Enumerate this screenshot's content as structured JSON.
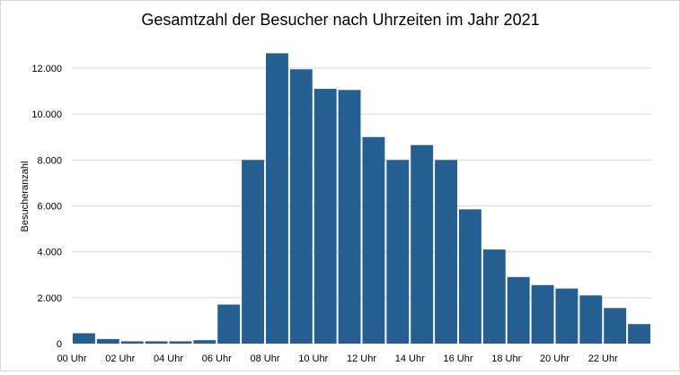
{
  "chart_data": {
    "type": "bar",
    "title": "Gesamtzahl der Besucher nach Uhrzeiten im Jahr 2021",
    "xlabel": "",
    "ylabel": "Besucheranzahl",
    "ylim": [
      0,
      12000
    ],
    "yticks": [
      0,
      2000,
      4000,
      6000,
      8000,
      10000,
      12000
    ],
    "ytick_labels": [
      "0",
      "2.000",
      "4.000",
      "6.000",
      "8.000",
      "10.000",
      "12.000"
    ],
    "categories": [
      "00 Uhr",
      "01 Uhr",
      "02 Uhr",
      "03 Uhr",
      "04 Uhr",
      "05 Uhr",
      "06 Uhr",
      "07 Uhr",
      "08 Uhr",
      "09 Uhr",
      "10 Uhr",
      "11 Uhr",
      "12 Uhr",
      "13 Uhr",
      "14 Uhr",
      "15 Uhr",
      "16 Uhr",
      "17 Uhr",
      "18 Uhr",
      "19 Uhr",
      "20 Uhr",
      "21 Uhr",
      "22 Uhr",
      "23 Uhr"
    ],
    "xtick_labels": [
      "00 Uhr",
      "02 Uhr",
      "04 Uhr",
      "06 Uhr",
      "08 Uhr",
      "10 Uhr",
      "12 Uhr",
      "14 Uhr",
      "16 Uhr",
      "18 Uhr",
      "20 Uhr",
      "22 Uhr"
    ],
    "values": [
      450,
      200,
      100,
      100,
      100,
      150,
      1700,
      8000,
      12650,
      11950,
      11100,
      11050,
      9000,
      8000,
      8650,
      8000,
      5850,
      4100,
      2900,
      2550,
      2400,
      2100,
      1550,
      850
    ],
    "grid": true,
    "legend": "none",
    "colors": {
      "bar": "#255e91",
      "grid": "#d9d9d9",
      "text": "#000000"
    }
  }
}
